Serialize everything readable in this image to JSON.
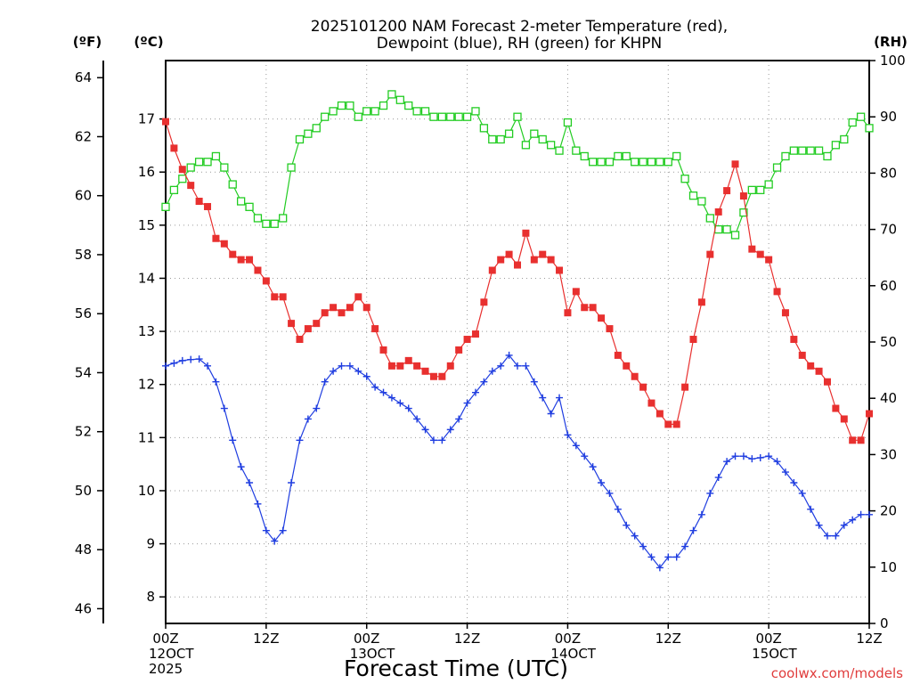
{
  "chart_data": {
    "type": "line",
    "title_line1": "2025101200 NAM Forecast 2-meter Temperature (red),",
    "title_line2": "Dewpoint (blue), RH (green) for KHPN",
    "xlabel": "Forecast Time (UTC)",
    "credit": "coolwx.com/models",
    "unit_left_f": "(ºF)",
    "unit_left_c": "(ºC)",
    "unit_right": "(RH)",
    "x_range_hours": [
      0,
      84
    ],
    "y_celsius_range": [
      7.5,
      18.1
    ],
    "y_rh_range": [
      0,
      100
    ],
    "x_ticks": [
      {
        "hour": 0,
        "lines": [
          "00Z",
          "12OCT",
          "2025"
        ]
      },
      {
        "hour": 12,
        "lines": [
          "12Z"
        ]
      },
      {
        "hour": 24,
        "lines": [
          "00Z",
          "13OCT"
        ]
      },
      {
        "hour": 36,
        "lines": [
          "12Z"
        ]
      },
      {
        "hour": 48,
        "lines": [
          "00Z",
          "14OCT"
        ]
      },
      {
        "hour": 60,
        "lines": [
          "12Z"
        ]
      },
      {
        "hour": 72,
        "lines": [
          "00Z",
          "15OCT"
        ]
      },
      {
        "hour": 84,
        "lines": [
          "12Z"
        ]
      }
    ],
    "y_ticks_c": [
      8,
      9,
      10,
      11,
      12,
      13,
      14,
      15,
      16,
      17
    ],
    "y_ticks_f": [
      46,
      48,
      50,
      52,
      54,
      56,
      58,
      60,
      62,
      64
    ],
    "y_ticks_rh": [
      0,
      10,
      20,
      30,
      40,
      50,
      60,
      70,
      80,
      90,
      100
    ],
    "colors": {
      "temperature": "#e8302f",
      "dewpoint": "#1f3de0",
      "rh": "#22cc22",
      "grid": "#9a9a9a"
    },
    "series": [
      {
        "name": "Temperature",
        "unit": "C",
        "marker": "filled-square",
        "values": [
          16.95,
          16.45,
          16.05,
          15.75,
          15.45,
          15.35,
          14.75,
          14.65,
          14.45,
          14.35,
          14.35,
          14.15,
          13.95,
          13.65,
          13.65,
          13.15,
          12.85,
          13.05,
          13.15,
          13.35,
          13.45,
          13.35,
          13.45,
          13.65,
          13.45,
          13.05,
          12.65,
          12.35,
          12.35,
          12.45,
          12.35,
          12.25,
          12.15,
          12.15,
          12.35,
          12.65,
          12.85,
          12.95,
          13.55,
          14.15,
          14.35,
          14.45,
          14.25,
          14.85,
          14.35,
          14.45,
          14.35,
          14.15,
          13.35,
          13.75,
          13.45,
          13.45,
          13.25,
          13.05,
          12.55,
          12.35,
          12.15,
          11.95,
          11.65,
          11.45,
          11.25,
          11.25,
          11.95,
          12.85,
          13.55,
          14.45,
          15.25,
          15.65,
          16.15,
          15.55,
          14.55,
          14.45,
          14.35,
          13.75,
          13.35,
          12.85,
          12.55,
          12.35,
          12.25,
          12.05,
          11.55,
          11.35,
          10.95,
          10.95,
          11.45
        ]
      },
      {
        "name": "Dewpoint",
        "unit": "C",
        "marker": "plus",
        "values": [
          12.35,
          12.4,
          12.45,
          12.47,
          12.48,
          12.35,
          12.05,
          11.55,
          10.95,
          10.45,
          10.15,
          9.75,
          9.25,
          9.05,
          9.25,
          10.15,
          10.95,
          11.35,
          11.55,
          12.05,
          12.25,
          12.35,
          12.35,
          12.25,
          12.15,
          11.95,
          11.85,
          11.75,
          11.65,
          11.55,
          11.35,
          11.15,
          10.95,
          10.95,
          11.15,
          11.35,
          11.65,
          11.85,
          12.05,
          12.25,
          12.35,
          12.55,
          12.35,
          12.35,
          12.05,
          11.75,
          11.45,
          11.75,
          11.05,
          10.85,
          10.65,
          10.45,
          10.15,
          9.95,
          9.65,
          9.35,
          9.15,
          8.95,
          8.75,
          8.55,
          8.75,
          8.75,
          8.95,
          9.25,
          9.55,
          9.95,
          10.25,
          10.55,
          10.65,
          10.65,
          10.6,
          10.62,
          10.65,
          10.55,
          10.35,
          10.15,
          9.95,
          9.65,
          9.35,
          9.15,
          9.15,
          9.35,
          9.45,
          9.55,
          9.55
        ]
      },
      {
        "name": "RH",
        "unit": "%",
        "marker": "open-square",
        "values": [
          74,
          77,
          79,
          81,
          82,
          82,
          83,
          81,
          78,
          75,
          74,
          72,
          71,
          71,
          72,
          81,
          86,
          87,
          88,
          90,
          91,
          92,
          92,
          90,
          91,
          91,
          92,
          94,
          93,
          92,
          91,
          91,
          90,
          90,
          90,
          90,
          90,
          91,
          88,
          86,
          86,
          87,
          90,
          85,
          87,
          86,
          85,
          84,
          89,
          84,
          83,
          82,
          82,
          82,
          83,
          83,
          82,
          82,
          82,
          82,
          82,
          83,
          79,
          76,
          75,
          72,
          70,
          70,
          69,
          73,
          77,
          77,
          78,
          81,
          83,
          84,
          84,
          84,
          84,
          83,
          85,
          86,
          89,
          90,
          88
        ]
      }
    ]
  }
}
